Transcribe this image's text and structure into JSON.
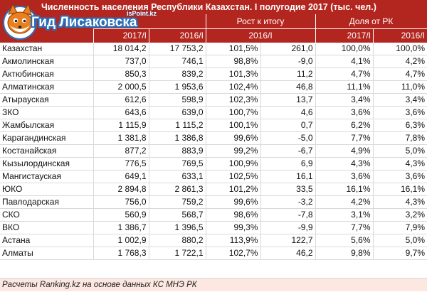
{
  "title": "Численность населения Республики Казахстан. I полугодие 2017 (тыс. чел.)",
  "logo": {
    "site_name": "Гид Лисаковска",
    "domain": "isPoint.kz",
    "icon": "fox-mascot-icon"
  },
  "header": {
    "growth_group": "Рост к итогу",
    "share_group": "Доля от РК",
    "col_2017": "2017/I",
    "col_2016": "2016/I",
    "growth_sub": "2016/I",
    "share_2017": "2017/I",
    "share_2016": "2016/I"
  },
  "rows": [
    {
      "region": "Казахстан",
      "v2017": "18 014,2",
      "v2016": "17 753,2",
      "pct": "101,5%",
      "diff": "261,0",
      "sh2017": "100,0%",
      "sh2016": "100,0%"
    },
    {
      "region": "Акмолинская",
      "v2017": "737,0",
      "v2016": "746,1",
      "pct": "98,8%",
      "diff": "-9,0",
      "sh2017": "4,1%",
      "sh2016": "4,2%"
    },
    {
      "region": "Актюбинская",
      "v2017": "850,3",
      "v2016": "839,2",
      "pct": "101,3%",
      "diff": "11,2",
      "sh2017": "4,7%",
      "sh2016": "4,7%"
    },
    {
      "region": "Алматинская",
      "v2017": "2 000,5",
      "v2016": "1 953,6",
      "pct": "102,4%",
      "diff": "46,8",
      "sh2017": "11,1%",
      "sh2016": "11,0%"
    },
    {
      "region": "Атырауская",
      "v2017": "612,6",
      "v2016": "598,9",
      "pct": "102,3%",
      "diff": "13,7",
      "sh2017": "3,4%",
      "sh2016": "3,4%"
    },
    {
      "region": "ЗКО",
      "v2017": "643,6",
      "v2016": "639,0",
      "pct": "100,7%",
      "diff": "4,6",
      "sh2017": "3,6%",
      "sh2016": "3,6%"
    },
    {
      "region": "Жамбылская",
      "v2017": "1 115,9",
      "v2016": "1 115,2",
      "pct": "100,1%",
      "diff": "0,7",
      "sh2017": "6,2%",
      "sh2016": "6,3%"
    },
    {
      "region": "Карагандинская",
      "v2017": "1 381,8",
      "v2016": "1 386,8",
      "pct": "99,6%",
      "diff": "-5,0",
      "sh2017": "7,7%",
      "sh2016": "7,8%"
    },
    {
      "region": "Костанайская",
      "v2017": "877,2",
      "v2016": "883,9",
      "pct": "99,2%",
      "diff": "-6,7",
      "sh2017": "4,9%",
      "sh2016": "5,0%"
    },
    {
      "region": "Кызылординская",
      "v2017": "776,5",
      "v2016": "769,5",
      "pct": "100,9%",
      "diff": "6,9",
      "sh2017": "4,3%",
      "sh2016": "4,3%"
    },
    {
      "region": "Мангистауская",
      "v2017": "649,1",
      "v2016": "633,1",
      "pct": "102,5%",
      "diff": "16,1",
      "sh2017": "3,6%",
      "sh2016": "3,6%"
    },
    {
      "region": "ЮКО",
      "v2017": "2 894,8",
      "v2016": "2 861,3",
      "pct": "101,2%",
      "diff": "33,5",
      "sh2017": "16,1%",
      "sh2016": "16,1%"
    },
    {
      "region": "Павлодарская",
      "v2017": "756,0",
      "v2016": "759,2",
      "pct": "99,6%",
      "diff": "-3,2",
      "sh2017": "4,2%",
      "sh2016": "4,3%"
    },
    {
      "region": "СКО",
      "v2017": "560,9",
      "v2016": "568,7",
      "pct": "98,6%",
      "diff": "-7,8",
      "sh2017": "3,1%",
      "sh2016": "3,2%"
    },
    {
      "region": "ВКО",
      "v2017": "1 386,7",
      "v2016": "1 396,5",
      "pct": "99,3%",
      "diff": "-9,9",
      "sh2017": "7,7%",
      "sh2016": "7,9%"
    },
    {
      "region": "Астана",
      "v2017": "1 002,9",
      "v2016": "880,2",
      "pct": "113,9%",
      "diff": "122,7",
      "sh2017": "5,6%",
      "sh2016": "5,0%"
    },
    {
      "region": "Алматы",
      "v2017": "1 768,3",
      "v2016": "1 722,1",
      "pct": "102,7%",
      "diff": "46,2",
      "sh2017": "9,8%",
      "sh2016": "9,7%"
    }
  ],
  "footer": "Расчеты Ranking.kz на основе данных КС МНЭ РК",
  "colors": {
    "header": "#b3261f",
    "footer_bg": "#fce7e1",
    "logo_blue": "#2a6fb8",
    "fox_orange": "#e8801f"
  }
}
